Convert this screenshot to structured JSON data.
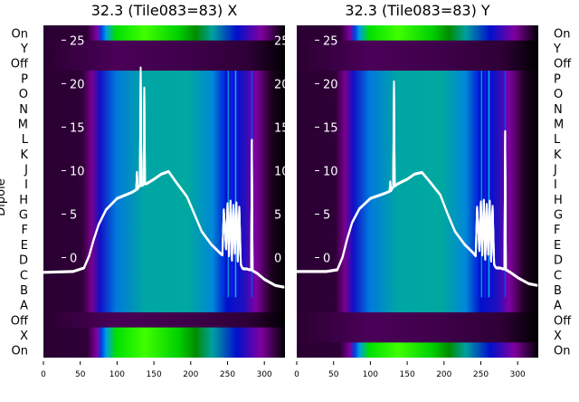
{
  "chart_data": [
    {
      "type": "heatmap",
      "title": "32.3 (Tile083=83) X",
      "ylabel": "Dipole",
      "row_labels": [
        "On",
        "Y",
        "Off",
        "P",
        "O",
        "N",
        "M",
        "L",
        "K",
        "J",
        "I",
        "H",
        "G",
        "F",
        "E",
        "D",
        "C",
        "B",
        "A",
        "Off",
        "X",
        "On"
      ],
      "x_ticks": [
        "0",
        "50",
        "100",
        "150",
        "200",
        "250",
        "300"
      ],
      "xlim": [
        0,
        328
      ],
      "overlay_y_ticks": [
        "25",
        "20",
        "15",
        "10",
        "5",
        "0"
      ],
      "overlay_ylim": [
        -11.5,
        26.7
      ],
      "overlay_line": {
        "color": "#ffffff",
        "x": [
          0,
          40,
          55,
          62,
          68,
          75,
          85,
          100,
          120,
          126,
          127,
          128,
          130,
          131,
          132,
          133,
          134,
          136,
          137,
          138,
          140,
          150,
          160,
          170,
          180,
          195,
          205,
          215,
          228,
          240,
          243,
          245,
          248,
          250,
          252,
          254,
          256,
          258,
          260,
          262,
          264,
          266,
          268,
          270,
          272,
          276,
          280,
          282,
          283,
          284,
          286,
          290,
          300,
          315,
          327
        ],
        "y": [
          -1.7,
          -1.6,
          -1.2,
          0.2,
          2,
          3.8,
          5.5,
          6.8,
          7.5,
          7.8,
          9.8,
          7.9,
          8.2,
          8.2,
          21.8,
          8.3,
          8.3,
          8.4,
          19.5,
          8.5,
          8.5,
          9,
          9.6,
          9.9,
          8.7,
          7,
          5,
          3,
          1.5,
          0.5,
          0.3,
          5.5,
          1,
          6.2,
          0.2,
          6.5,
          -0.3,
          6,
          0.5,
          6.3,
          -0.4,
          5.8,
          -0.8,
          -1.2,
          -1.3,
          -1.3,
          -1.4,
          -1.4,
          13.5,
          -1.5,
          -1.6,
          -1.8,
          -2.5,
          -3.2,
          -3.4
        ]
      },
      "green_rows": [
        "On",
        "X",
        "On"
      ]
    },
    {
      "type": "heatmap",
      "title": "32.3 (Tile083=83) Y",
      "row_labels": [
        "On",
        "Y",
        "Off",
        "P",
        "O",
        "N",
        "M",
        "L",
        "K",
        "J",
        "I",
        "H",
        "G",
        "F",
        "E",
        "D",
        "C",
        "B",
        "A",
        "Off",
        "X",
        "On"
      ],
      "x_ticks": [
        "0",
        "50",
        "100",
        "150",
        "200",
        "250",
        "300"
      ],
      "xlim": [
        0,
        328
      ],
      "overlay_y_ticks": [
        "25",
        "20",
        "15",
        "10",
        "5",
        "0"
      ],
      "overlay_ylim": [
        -11.5,
        26.7
      ],
      "overlay_line": {
        "color": "#ffffff",
        "x": [
          0,
          40,
          55,
          62,
          68,
          75,
          85,
          100,
          120,
          126,
          127,
          128,
          130,
          131,
          132,
          133,
          134,
          136,
          137,
          138,
          140,
          150,
          160,
          170,
          180,
          195,
          205,
          215,
          228,
          240,
          243,
          245,
          248,
          250,
          252,
          254,
          256,
          258,
          260,
          262,
          264,
          266,
          268,
          270,
          272,
          276,
          280,
          282,
          283,
          284,
          286,
          290,
          300,
          315,
          327
        ],
        "y": [
          -1.6,
          -1.6,
          -1.4,
          0,
          2,
          4,
          5.6,
          6.8,
          7.4,
          7.6,
          8.7,
          7.7,
          8,
          8.1,
          20.2,
          8.2,
          8.3,
          8.4,
          8.5,
          8.5,
          8.6,
          9,
          9.6,
          9.8,
          8.8,
          7.2,
          5,
          3,
          1.5,
          0.5,
          0.2,
          5.8,
          0.8,
          6.4,
          0.3,
          6.6,
          -0.2,
          6.1,
          0.4,
          6.5,
          -0.4,
          5.9,
          -0.8,
          -1.1,
          -1.2,
          -1.2,
          -1.3,
          -1.3,
          14.5,
          -1.4,
          -1.5,
          -1.7,
          -2.3,
          -3,
          -3.2
        ]
      },
      "green_rows": [
        "On",
        "On"
      ]
    }
  ]
}
